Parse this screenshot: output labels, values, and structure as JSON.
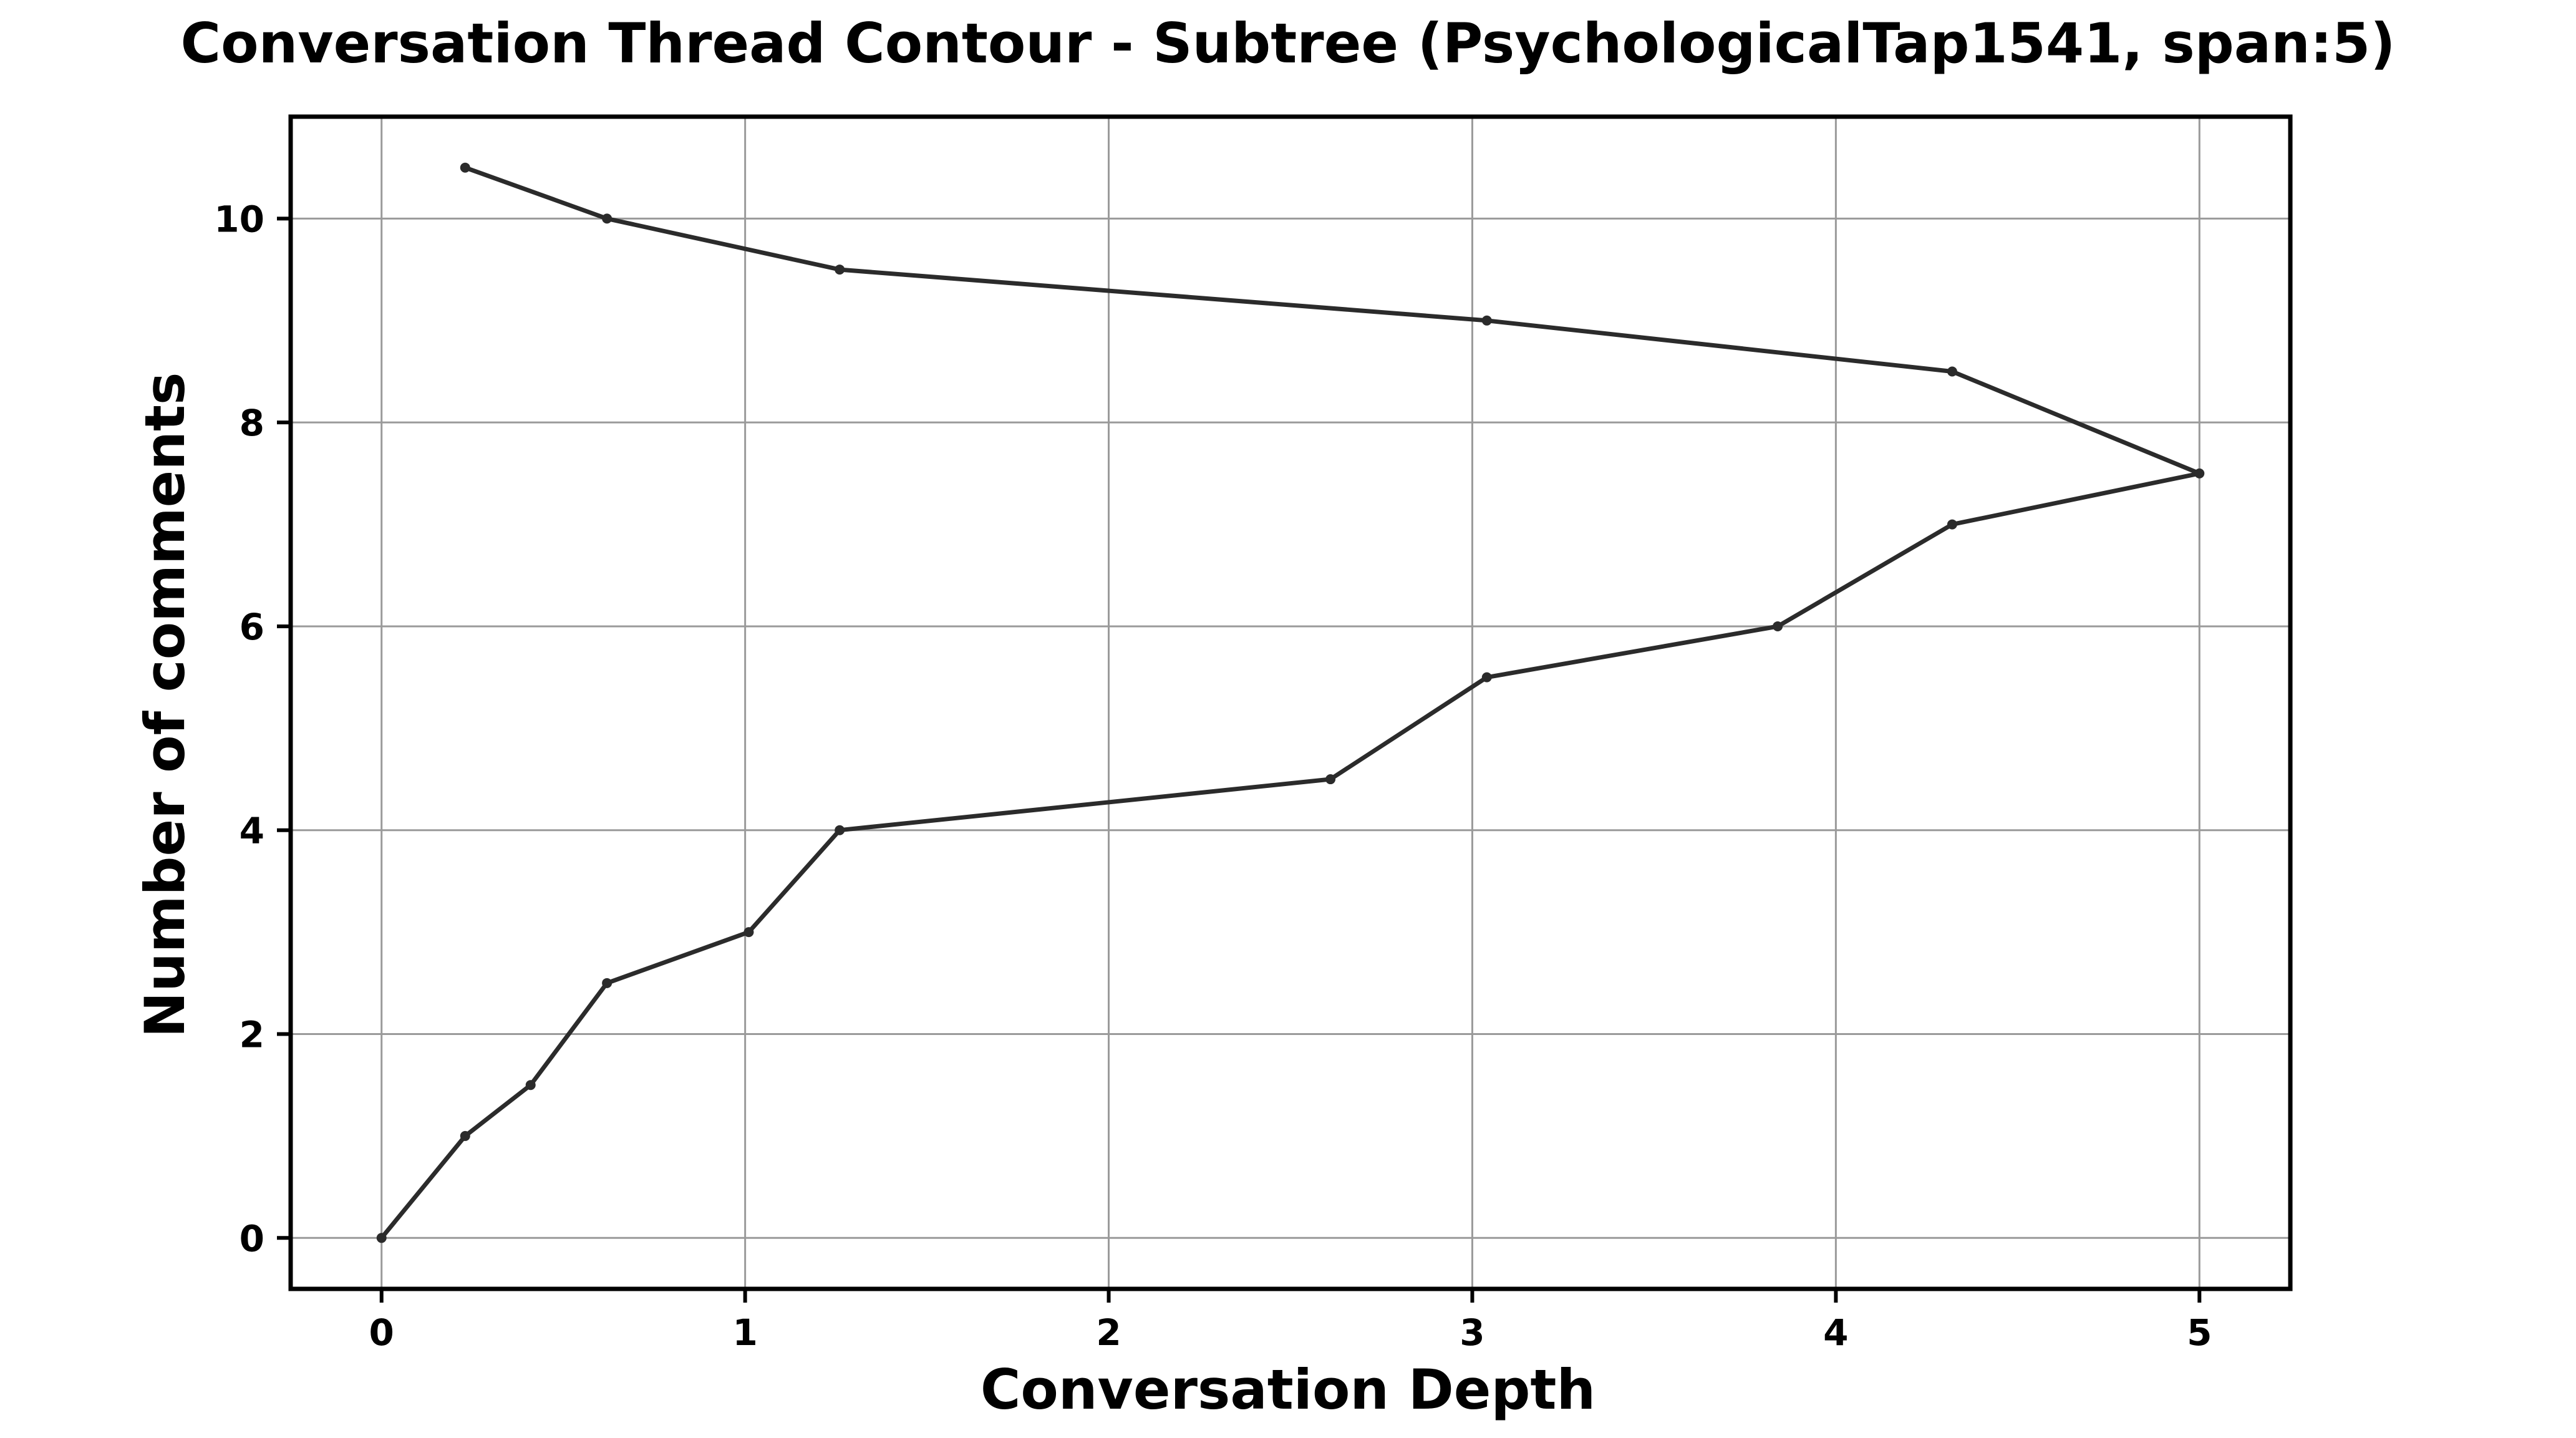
{
  "chart_data": {
    "type": "line",
    "title": "Conversation Thread Contour  - Subtree (PsychologicalTap1541, span:5)",
    "xlabel": "Conversation Depth",
    "ylabel": "Number of comments",
    "xlim": [
      -0.25,
      5.25
    ],
    "ylim": [
      -0.5,
      11.0
    ],
    "xticks": [
      0,
      1,
      2,
      3,
      4,
      5
    ],
    "yticks": [
      0,
      2,
      4,
      6,
      8,
      10
    ],
    "grid": true,
    "line_color": "#2b2b2b",
    "series": [
      {
        "x": [
          0,
          0.23,
          0.41,
          0.62,
          1.01,
          1.26,
          2.61,
          3.04,
          3.84,
          4.32,
          5.0,
          4.32,
          3.04,
          1.26,
          0.62,
          0.23
        ],
        "y": [
          0,
          1,
          1.5,
          2.5,
          3,
          4,
          4.5,
          5.5,
          6,
          7,
          7.5,
          8.5,
          9,
          9.5,
          10,
          10.5
        ]
      }
    ]
  }
}
